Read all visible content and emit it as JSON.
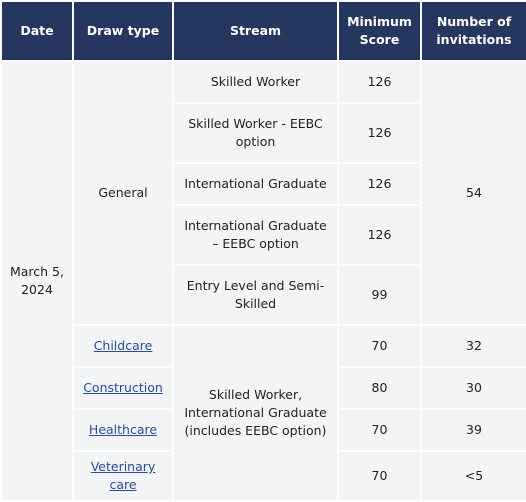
{
  "table": {
    "headers": {
      "date": "Date",
      "draw_type": "Draw type",
      "stream": "Stream",
      "min_score": "Minimum Score",
      "invitations": "Number of invitations"
    },
    "date": "March 5, 2024",
    "general": {
      "draw_type": "General",
      "invitations": "54",
      "rows": [
        {
          "stream": "Skilled Worker",
          "score": "126"
        },
        {
          "stream": "Skilled Worker - EEBC option",
          "score": "126"
        },
        {
          "stream": "International Graduate",
          "score": "126"
        },
        {
          "stream": "International Graduate – EEBC option",
          "score": "126"
        },
        {
          "stream": "Entry Level and Semi-Skilled",
          "score": "99"
        }
      ]
    },
    "targeted": {
      "stream": "Skilled Worker, International Graduate (includes EEBC option)",
      "rows": [
        {
          "draw_type": "Childcare",
          "score": "70",
          "invitations": "32"
        },
        {
          "draw_type": "Construction",
          "score": "80",
          "invitations": "30"
        },
        {
          "draw_type": "Healthcare",
          "score": "70",
          "invitations": "39"
        },
        {
          "draw_type": "Veterinary care",
          "score": "70",
          "invitations": "<5"
        }
      ]
    }
  }
}
